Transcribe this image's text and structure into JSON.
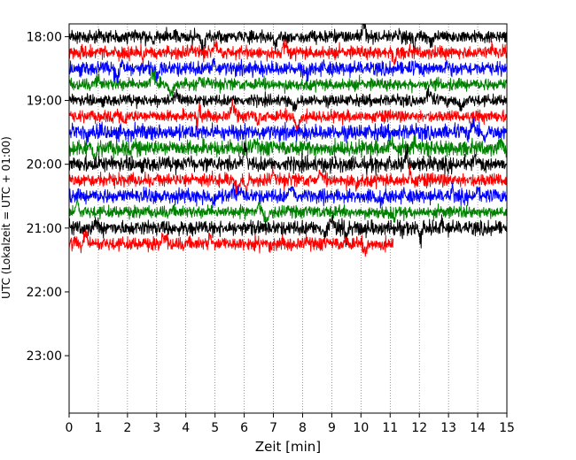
{
  "chart_data": {
    "type": "line",
    "title": "",
    "xlabel": "Zeit  [min]",
    "ylabel": "UTC (Lokalzeit = UTC + 01:00)",
    "xlim": [
      0,
      15
    ],
    "x_ticks": [
      "0",
      "1",
      "2",
      "3",
      "4",
      "5",
      "6",
      "7",
      "8",
      "9",
      "10",
      "11",
      "12",
      "13",
      "14",
      "15"
    ],
    "y_ticks": [
      {
        "hour": 18,
        "label": "18:00"
      },
      {
        "hour": 19,
        "label": "19:00"
      },
      {
        "hour": 20,
        "label": "20:00"
      },
      {
        "hour": 21,
        "label": "21:00"
      },
      {
        "hour": 22,
        "label": "22:00"
      },
      {
        "hour": 23,
        "label": "23:00"
      }
    ],
    "ylim_hours": [
      17.8,
      23.9
    ],
    "trace_interval_min": 15,
    "start_hour": 18.0,
    "last_trace_end_min": 11.1,
    "colors": [
      "#000000",
      "#ff0000",
      "#0000ff",
      "#008000"
    ],
    "grid": "vertical-dotted",
    "legend": "none"
  }
}
